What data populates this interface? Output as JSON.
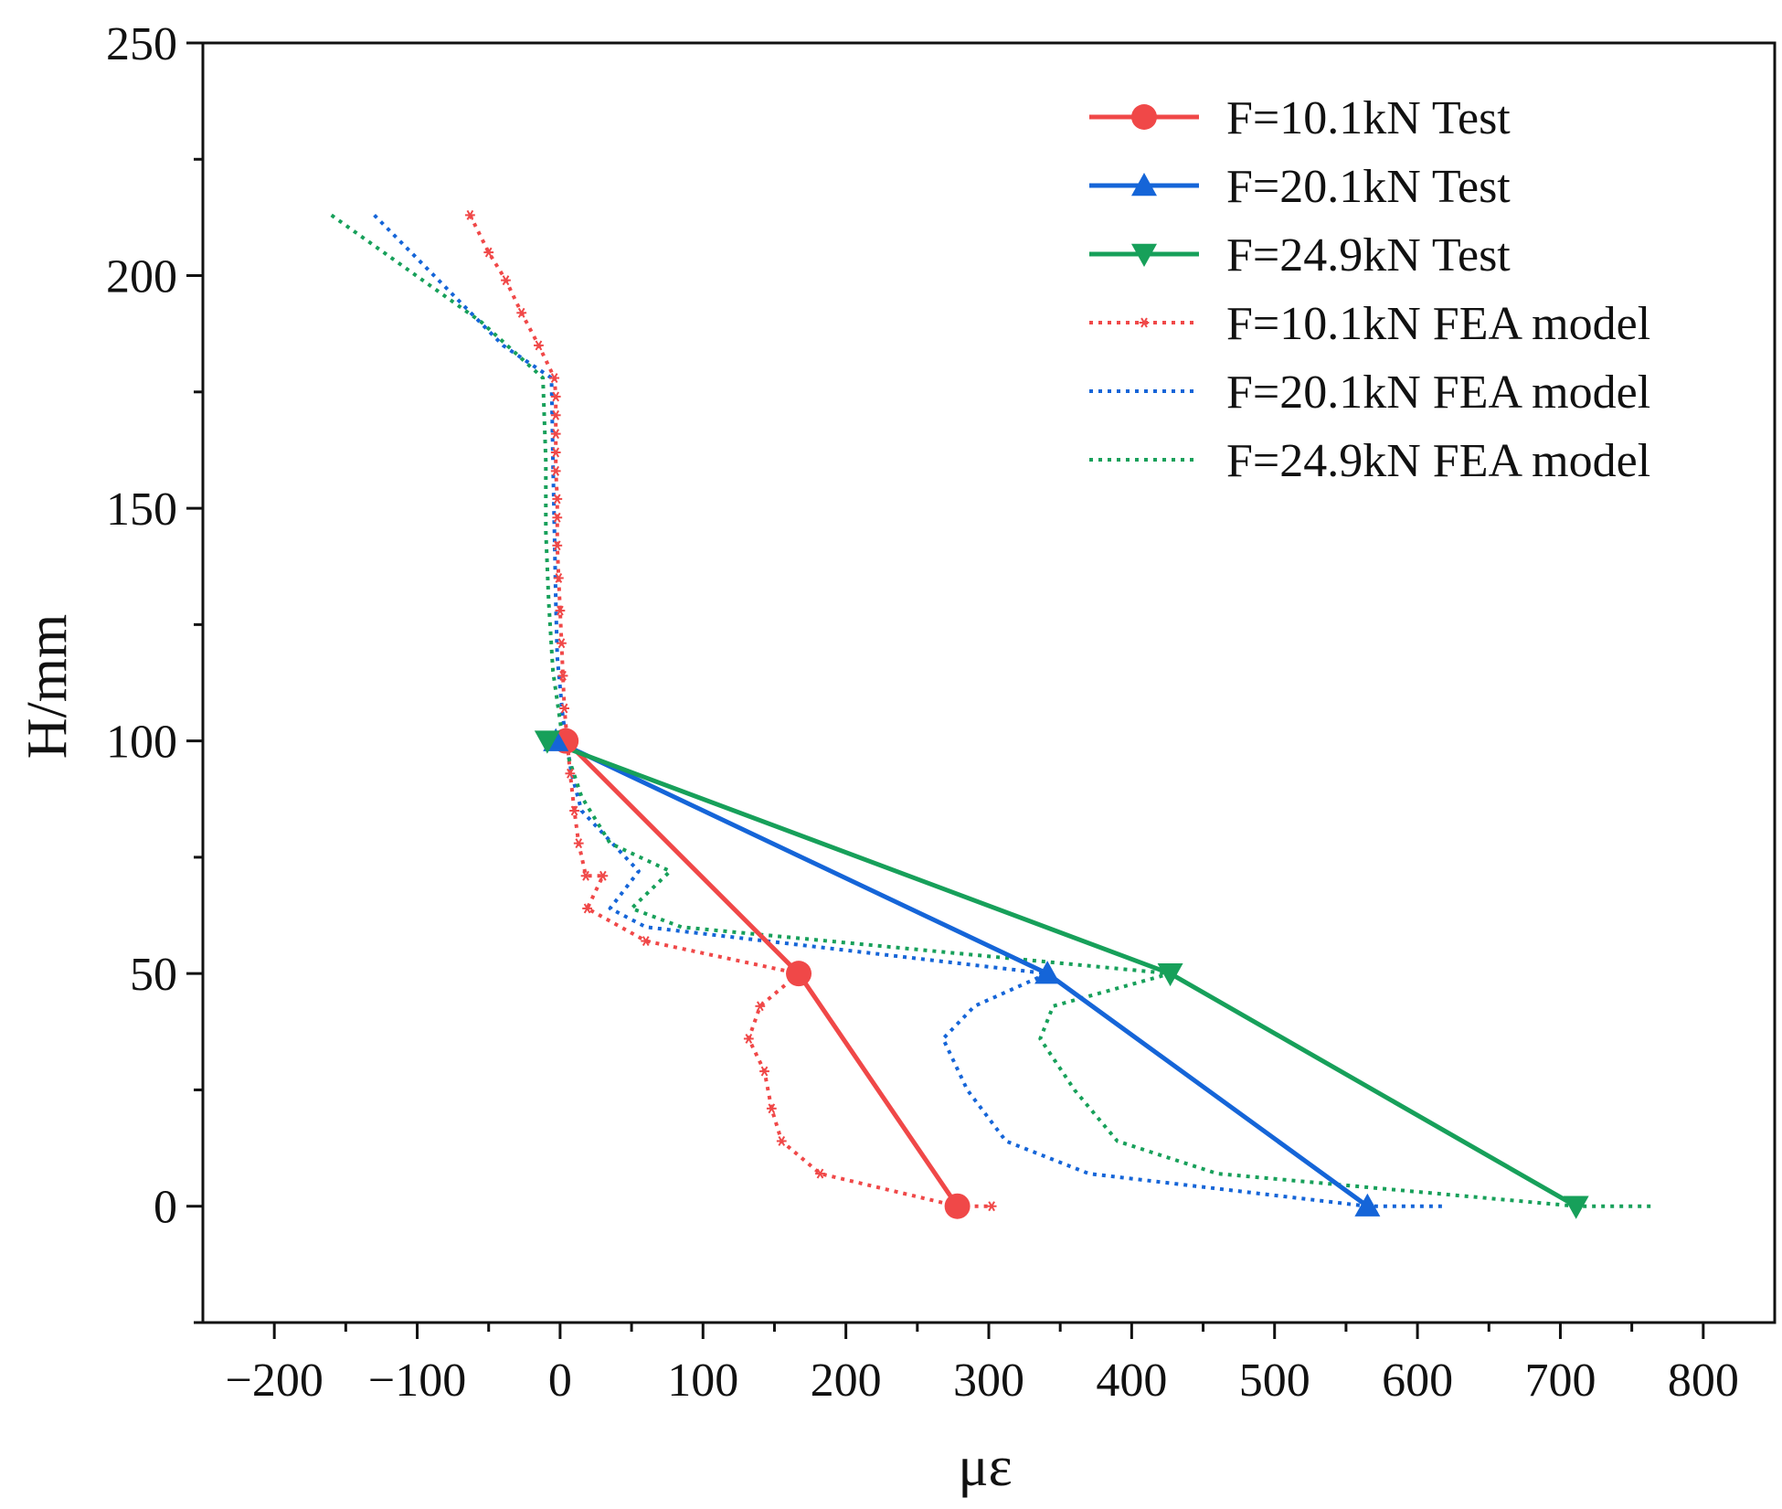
{
  "chart_data": {
    "type": "line",
    "title": "",
    "xlabel": "με",
    "ylabel": "H/mm",
    "xlim": [
      -250,
      850
    ],
    "ylim": [
      -25,
      250
    ],
    "xticks": [
      -200,
      -100,
      0,
      100,
      200,
      300,
      400,
      500,
      600,
      700,
      800
    ],
    "xtick_labels": [
      "−200",
      "−100",
      "0",
      "100",
      "200",
      "300",
      "400",
      "500",
      "600",
      "700",
      "800"
    ],
    "yticks": [
      0,
      50,
      100,
      150,
      200,
      250
    ],
    "ytick_labels": [
      "0",
      "50",
      "100",
      "150",
      "200",
      "250"
    ],
    "legend_position": "top-right",
    "series": [
      {
        "name": "F=10.1kN Test",
        "color": "#f04848",
        "style": "solid",
        "marker": "circle",
        "x": [
          4,
          167,
          278
        ],
        "y": [
          100,
          50,
          0
        ]
      },
      {
        "name": "F=20.1kN Test",
        "color": "#1565d8",
        "style": "solid",
        "marker": "triangle-up",
        "x": [
          -3,
          341,
          565
        ],
        "y": [
          100,
          50,
          0
        ]
      },
      {
        "name": "F=24.9kN Test",
        "color": "#17a05a",
        "style": "solid",
        "marker": "triangle-down",
        "x": [
          -9,
          427,
          711
        ],
        "y": [
          100,
          50,
          0
        ]
      },
      {
        "name": "F=10.1kN FEA model",
        "color": "#f04848",
        "style": "dotted",
        "marker": "asterisk",
        "x": [
          -63,
          -50,
          -38,
          -27,
          -15,
          -4,
          -3,
          -3,
          -3,
          -3,
          -3,
          -2,
          -2,
          -2,
          -1,
          0,
          1,
          2,
          3,
          5,
          7,
          10,
          13,
          18,
          30,
          19,
          60,
          167,
          140,
          132,
          143,
          148,
          155,
          182,
          278,
          302
        ],
        "y": [
          213,
          205,
          199,
          192,
          185,
          178,
          174,
          170,
          166,
          162,
          158,
          152,
          148,
          142,
          135,
          128,
          121,
          114,
          107,
          100,
          93,
          85,
          78,
          71,
          71,
          64,
          57,
          50,
          43,
          36,
          29,
          21,
          14,
          7,
          0,
          0
        ]
      },
      {
        "name": "F=20.1kN FEA model",
        "color": "#1565d8",
        "style": "dotted",
        "marker": "none",
        "x": [
          -130,
          -40,
          -6,
          -5,
          -4,
          -3,
          -2,
          2,
          8,
          15,
          55,
          35,
          60,
          341,
          290,
          268,
          285,
          312,
          370,
          565,
          620
        ],
        "y": [
          213,
          185,
          178,
          160,
          145,
          130,
          118,
          105,
          93,
          85,
          72,
          64,
          60,
          50,
          43,
          36,
          25,
          14,
          7,
          0,
          0
        ]
      },
      {
        "name": "F=24.9kN FEA model",
        "color": "#17a05a",
        "style": "dotted",
        "marker": "none",
        "x": [
          -160,
          -55,
          -12,
          -10,
          -10,
          -8,
          -5,
          2,
          15,
          35,
          77,
          50,
          85,
          427,
          345,
          336,
          360,
          390,
          460,
          711,
          765
        ],
        "y": [
          213,
          190,
          178,
          160,
          145,
          130,
          115,
          100,
          88,
          78,
          72,
          64,
          60,
          50,
          43,
          36,
          25,
          14,
          7,
          0,
          0
        ]
      }
    ]
  }
}
